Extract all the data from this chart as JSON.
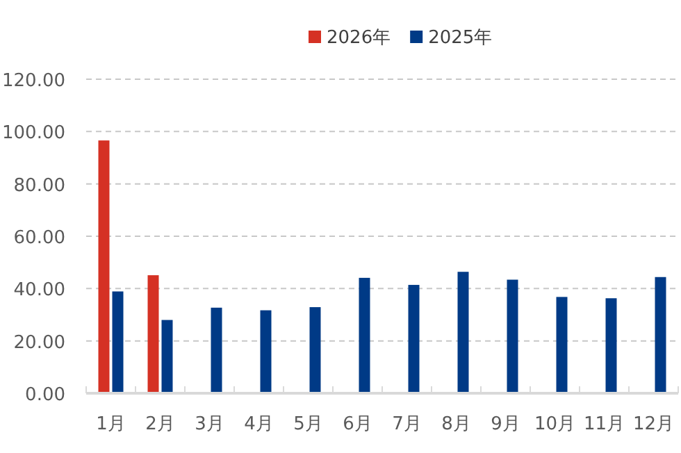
{
  "chart_data": {
    "type": "bar",
    "categories": [
      "1月",
      "2月",
      "3月",
      "4月",
      "5月",
      "6月",
      "7月",
      "8月",
      "9月",
      "10月",
      "11月",
      "12月"
    ],
    "series": [
      {
        "name": "2026年",
        "color": "#d53124",
        "values": [
          96.6,
          45.1,
          null,
          null,
          null,
          null,
          null,
          null,
          null,
          null,
          null,
          null
        ]
      },
      {
        "name": "2025年",
        "color": "#003a86",
        "values": [
          38.9,
          28.0,
          32.7,
          31.7,
          32.9,
          44.1,
          41.4,
          46.4,
          43.4,
          36.8,
          36.3,
          44.4
        ]
      }
    ],
    "ylim": [
      0,
      120
    ],
    "yticks": [
      {
        "value": 0,
        "label": "0.00"
      },
      {
        "value": 20,
        "label": "20.00"
      },
      {
        "value": 40,
        "label": "40.00"
      },
      {
        "value": 60,
        "label": "60.00"
      },
      {
        "value": 80,
        "label": "80.00"
      },
      {
        "value": 100,
        "label": "100.00"
      },
      {
        "value": 120,
        "label": "120.00"
      }
    ],
    "grid": "y",
    "legend": "top"
  }
}
